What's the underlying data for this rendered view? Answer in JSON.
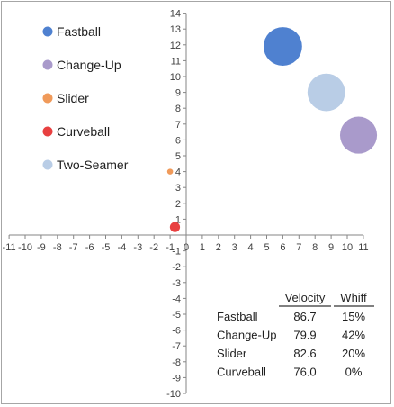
{
  "chart_data": {
    "type": "scatter",
    "title": "",
    "xlabel": "",
    "ylabel": "",
    "xlim": [
      -11,
      11
    ],
    "ylim": [
      -10,
      14
    ],
    "x_ticks": [
      -11,
      -10,
      -9,
      -8,
      -7,
      -6,
      -5,
      -4,
      -3,
      -2,
      -1,
      0,
      1,
      2,
      3,
      4,
      5,
      6,
      7,
      8,
      9,
      10,
      11
    ],
    "y_ticks": [
      -10,
      -9,
      -8,
      -7,
      -6,
      -5,
      -4,
      -3,
      -2,
      -1,
      0,
      1,
      2,
      3,
      4,
      5,
      6,
      7,
      8,
      9,
      10,
      11,
      12,
      13,
      14
    ],
    "grid": false,
    "legend_position": "top-left",
    "series": [
      {
        "name": "Fastball",
        "color": "#4f81d0",
        "points": [
          {
            "x": 6.0,
            "y": 11.9,
            "size": 86.7
          }
        ]
      },
      {
        "name": "Change-Up",
        "color": "#a99acb",
        "points": [
          {
            "x": 10.7,
            "y": 6.3,
            "size": 79.9
          }
        ]
      },
      {
        "name": "Slider",
        "color": "#f09a5a",
        "points": [
          {
            "x": -1.0,
            "y": 4.0,
            "size": 2
          }
        ]
      },
      {
        "name": "Curveball",
        "color": "#e84040",
        "points": [
          {
            "x": -0.7,
            "y": 0.5,
            "size": 6
          }
        ]
      },
      {
        "name": "Two-Seamer",
        "color": "#b9cde6",
        "points": [
          {
            "x": 8.7,
            "y": 9.0,
            "size": 82.6
          }
        ]
      }
    ],
    "table": {
      "headers": [
        "",
        "Velocity",
        "Whiff"
      ],
      "rows": [
        [
          "Fastball",
          "86.7",
          "15%"
        ],
        [
          "Change-Up",
          "79.9",
          "42%"
        ],
        [
          "Slider",
          "82.6",
          "20%"
        ],
        [
          "Curveball",
          "76.0",
          "0%"
        ]
      ]
    }
  }
}
